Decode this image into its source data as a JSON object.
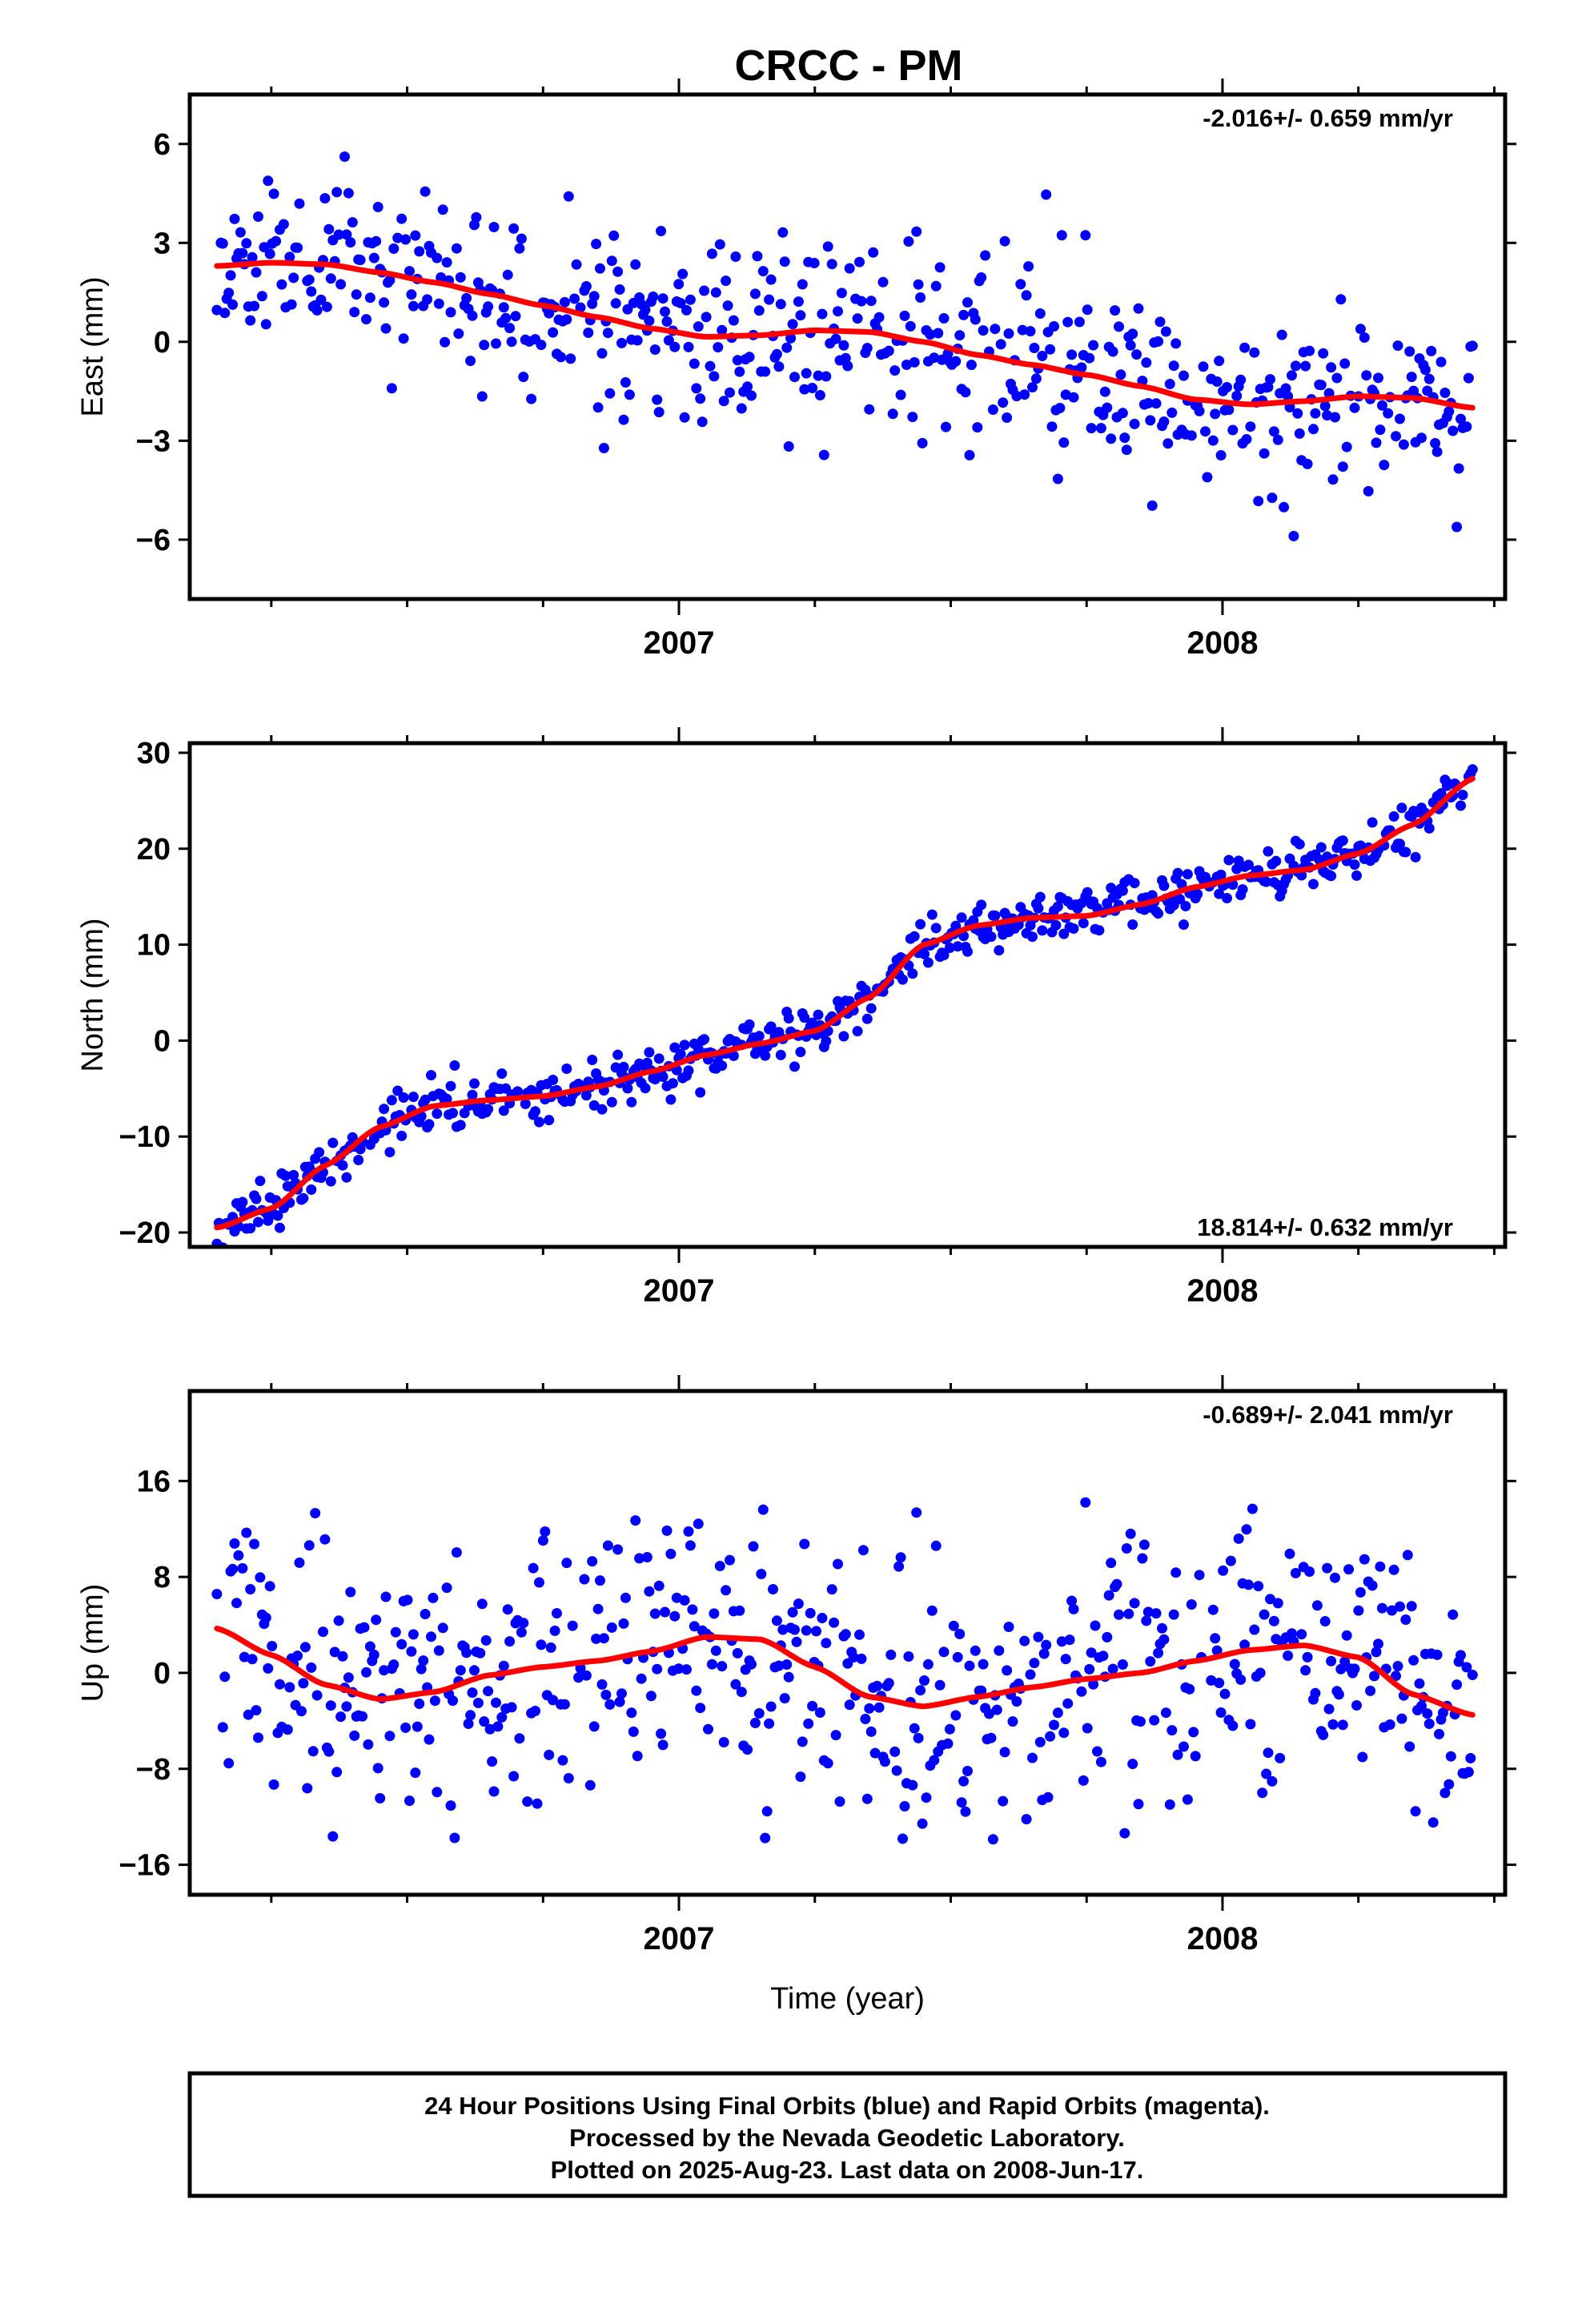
{
  "title": "CRCC - PM",
  "footer": {
    "line1": "24 Hour Positions Using Final Orbits (blue) and Rapid Orbits (magenta).",
    "line2": "Processed by the Nevada Geodetic Laboratory.",
    "line3": "Plotted on 2025-Aug-23. Last data on 2008-Jun-17."
  },
  "colors": {
    "final_orbits": "#0000ff",
    "fit": "#ff0000"
  },
  "chart_data": [
    {
      "type": "scatter",
      "panel": "east",
      "ylabel": "East (mm)",
      "xlabel": "",
      "rate_label": "-2.016+/- 0.659 mm/yr",
      "xlim": [
        2006.1,
        2008.52
      ],
      "ylim": [
        -7.8,
        7.5
      ],
      "yticks": [
        -6,
        -3,
        0,
        3,
        6
      ],
      "yticklabels": [
        "−6",
        "−3",
        "0",
        "3",
        "6"
      ],
      "xticks": [
        2007,
        2008
      ],
      "xticklabels": [
        "2007",
        "2008"
      ],
      "fit_x": [
        2006.15,
        2006.25,
        2006.35,
        2006.45,
        2006.55,
        2006.65,
        2006.75,
        2006.85,
        2006.95,
        2007.05,
        2007.15,
        2007.25,
        2007.35,
        2007.45,
        2007.55,
        2007.65,
        2007.75,
        2007.85,
        2007.95,
        2008.05,
        2008.15,
        2008.25,
        2008.35,
        2008.46
      ],
      "fit_y": [
        2.3,
        2.4,
        2.35,
        2.1,
        1.8,
        1.45,
        1.1,
        0.75,
        0.4,
        0.15,
        0.2,
        0.35,
        0.3,
        0.0,
        -0.4,
        -0.7,
        -1.0,
        -1.35,
        -1.75,
        -1.9,
        -1.8,
        -1.65,
        -1.7,
        -2.0
      ],
      "noise_sd": 1.4,
      "n_points": 640,
      "seed": 11
    },
    {
      "type": "scatter",
      "panel": "north",
      "ylabel": "North (mm)",
      "xlabel": "",
      "rate_label": "18.814+/- 0.632 mm/yr",
      "xlim": [
        2006.1,
        2008.52
      ],
      "ylim": [
        -21.5,
        31
      ],
      "yticks": [
        -20,
        -10,
        0,
        10,
        20,
        30
      ],
      "yticklabels": [
        "−20",
        "−10",
        "0",
        "10",
        "20",
        "30"
      ],
      "xticks": [
        2007,
        2008
      ],
      "xticklabels": [
        "2007",
        "2008"
      ],
      "fit_x": [
        2006.15,
        2006.25,
        2006.35,
        2006.45,
        2006.55,
        2006.65,
        2006.75,
        2006.85,
        2006.95,
        2007.05,
        2007.15,
        2007.25,
        2007.35,
        2007.45,
        2007.55,
        2007.65,
        2007.75,
        2007.85,
        2007.95,
        2008.05,
        2008.15,
        2008.25,
        2008.35,
        2008.46
      ],
      "fit_y": [
        -19.5,
        -17.5,
        -13.0,
        -9.0,
        -6.8,
        -6.2,
        -5.8,
        -4.8,
        -3.2,
        -1.5,
        -0.3,
        1.0,
        4.5,
        10.0,
        12.0,
        12.8,
        13.0,
        14.2,
        16.0,
        17.2,
        17.8,
        19.5,
        22.5,
        27.3
      ],
      "noise_sd": 1.3,
      "n_points": 640,
      "seed": 23
    },
    {
      "type": "scatter",
      "panel": "up",
      "ylabel": "Up (mm)",
      "xlabel": "Time (year)",
      "rate_label": "-0.689+/- 2.041 mm/yr",
      "xlim": [
        2006.1,
        2008.52
      ],
      "ylim": [
        -18.5,
        23.5
      ],
      "yticks": [
        -16,
        -8,
        0,
        8,
        16
      ],
      "yticklabels": [
        "−16",
        "−8",
        "0",
        "8",
        "16"
      ],
      "xticks": [
        2007,
        2008
      ],
      "xticklabels": [
        "2007",
        "2008"
      ],
      "fit_x": [
        2006.15,
        2006.25,
        2006.35,
        2006.45,
        2006.55,
        2006.65,
        2006.75,
        2006.85,
        2006.95,
        2007.05,
        2007.15,
        2007.25,
        2007.35,
        2007.45,
        2007.55,
        2007.65,
        2007.75,
        2007.85,
        2007.95,
        2008.05,
        2008.15,
        2008.25,
        2008.35,
        2008.46
      ],
      "fit_y": [
        3.7,
        1.5,
        -1.0,
        -2.2,
        -1.6,
        -0.2,
        0.5,
        1.0,
        1.8,
        3.0,
        2.8,
        0.5,
        -2.0,
        -2.8,
        -2.0,
        -1.2,
        -0.5,
        0.0,
        1.0,
        1.9,
        2.3,
        1.3,
        -1.8,
        -3.5
      ],
      "noise_sd": 5.3,
      "n_points": 640,
      "seed": 37
    }
  ]
}
